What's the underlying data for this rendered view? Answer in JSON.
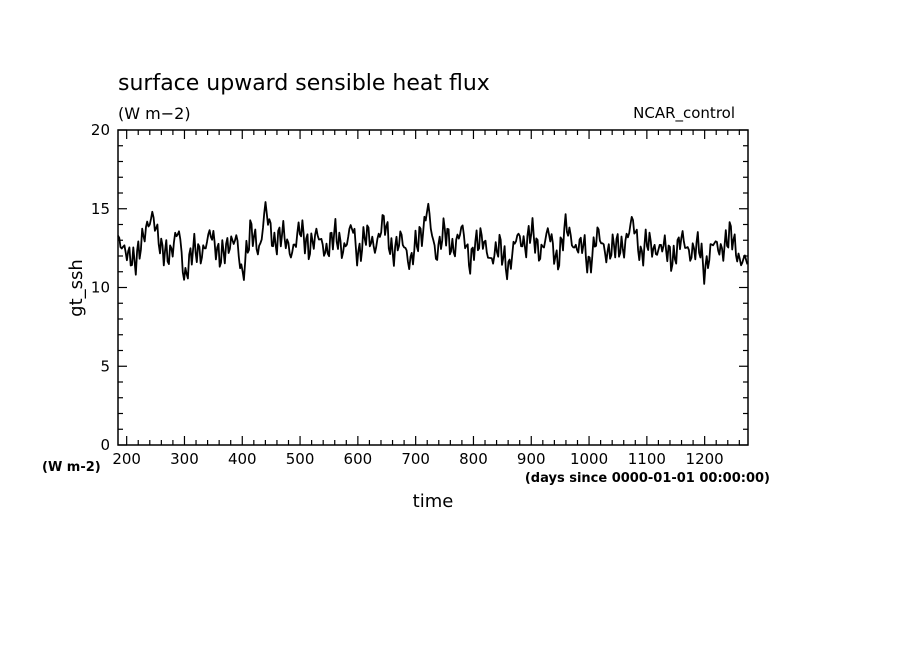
{
  "chart_data": {
    "type": "line",
    "title": "surface upward sensible heat flux",
    "subtitle": "(W m−2)",
    "run_label": "NCAR_control",
    "xlabel": "time",
    "x_units": "(days since 0000-01-01 00:00:00)",
    "ylabel": "gt_ssh",
    "y_units": "(W m-2)",
    "xlim": [
      185,
      1275
    ],
    "ylim": [
      0,
      20
    ],
    "x_ticks": [
      "200",
      "300",
      "400",
      "500",
      "600",
      "700",
      "800",
      "900",
      "1000",
      "1100",
      "1200"
    ],
    "y_ticks": [
      "0",
      "5",
      "10",
      "15",
      "20"
    ],
    "grid": false,
    "series": [
      {
        "x": [
          185,
          200,
          215,
          230,
          245,
          260,
          275,
          290,
          300,
          315,
          330,
          345,
          360,
          375,
          390,
          400,
          415,
          430,
          440,
          455,
          470,
          485,
          500,
          515,
          530,
          545,
          560,
          575,
          590,
          600,
          615,
          630,
          645,
          660,
          675,
          690,
          700,
          715,
          720,
          735,
          750,
          765,
          780,
          795,
          800,
          815,
          830,
          845,
          860,
          875,
          890,
          900,
          915,
          930,
          945,
          960,
          975,
          990,
          1000,
          1015,
          1030,
          1045,
          1060,
          1075,
          1090,
          1100,
          1115,
          1130,
          1145,
          1160,
          1175,
          1190,
          1200,
          1215,
          1230,
          1245,
          1260,
          1275
        ],
        "values": [
          13.0,
          12.2,
          11.6,
          13.4,
          14.6,
          12.4,
          12.0,
          13.8,
          10.4,
          12.6,
          12.0,
          13.6,
          11.9,
          12.6,
          13.2,
          10.6,
          13.8,
          12.2,
          15.2,
          12.6,
          13.6,
          12.0,
          13.9,
          12.4,
          13.5,
          12.1,
          13.6,
          12.2,
          14.1,
          11.8,
          13.6,
          12.4,
          14.4,
          12.0,
          13.3,
          11.4,
          12.8,
          13.7,
          15.4,
          11.9,
          13.8,
          12.2,
          13.9,
          11.3,
          12.6,
          13.2,
          11.6,
          12.8,
          11.0,
          13.4,
          12.5,
          13.8,
          12.0,
          13.7,
          11.4,
          14.1,
          12.4,
          12.9,
          11.2,
          13.6,
          12.0,
          12.8,
          12.4,
          14.4,
          11.8,
          13.1,
          12.2,
          12.8,
          11.6,
          13.3,
          12.0,
          12.9,
          10.9,
          13.0,
          12.2,
          13.6,
          11.6,
          11.9
        ]
      }
    ]
  }
}
